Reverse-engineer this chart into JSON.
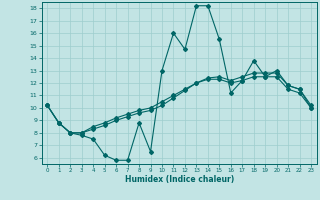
{
  "xlabel": "Humidex (Indice chaleur)",
  "xlim": [
    -0.5,
    23.5
  ],
  "ylim": [
    5.5,
    18.5
  ],
  "xticks": [
    0,
    1,
    2,
    3,
    4,
    5,
    6,
    7,
    8,
    9,
    10,
    11,
    12,
    13,
    14,
    15,
    16,
    17,
    18,
    19,
    20,
    21,
    22,
    23
  ],
  "yticks": [
    6,
    7,
    8,
    9,
    10,
    11,
    12,
    13,
    14,
    15,
    16,
    17,
    18
  ],
  "bg_color": "#c2e4e4",
  "grid_color": "#9ecece",
  "line_color": "#006666",
  "line1_y": [
    10.2,
    8.8,
    8.0,
    7.8,
    7.5,
    6.2,
    5.8,
    5.8,
    8.8,
    6.5,
    13.0,
    16.0,
    14.7,
    18.2,
    18.2,
    15.5,
    11.2,
    12.2,
    13.8,
    12.5,
    13.0,
    11.8,
    11.5,
    10.2
  ],
  "line2_y": [
    10.2,
    8.8,
    8.0,
    8.0,
    8.3,
    8.6,
    9.0,
    9.3,
    9.6,
    9.8,
    10.2,
    10.8,
    11.4,
    12.0,
    12.4,
    12.5,
    12.2,
    12.5,
    12.8,
    12.8,
    12.8,
    11.8,
    11.5,
    10.0
  ],
  "line3_y": [
    10.2,
    8.8,
    8.0,
    8.0,
    8.5,
    8.8,
    9.2,
    9.5,
    9.8,
    10.0,
    10.5,
    11.0,
    11.5,
    12.0,
    12.3,
    12.3,
    12.0,
    12.2,
    12.5,
    12.5,
    12.5,
    11.5,
    11.2,
    10.0
  ]
}
